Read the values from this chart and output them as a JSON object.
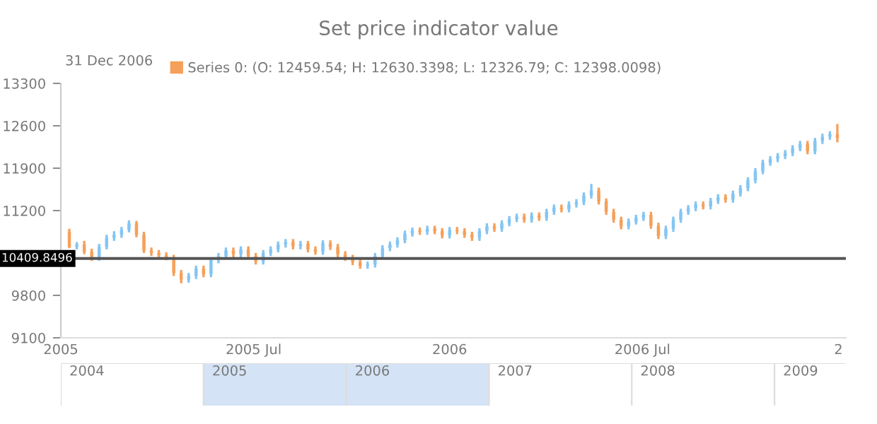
{
  "chart_data": [
    {
      "type": "candlestick",
      "title": "Set price indicator value",
      "annotations": [
        "31 Dec 2006",
        "2004",
        "2005",
        "2006",
        "2007",
        "2008",
        "2009"
      ],
      "x": [
        "2005-01-09",
        "2005-01-16",
        "2005-01-23",
        "2005-01-30",
        "2005-02-06",
        "2005-02-13",
        "2005-02-20",
        "2005-02-27",
        "2005-03-06",
        "2005-03-13",
        "2005-03-20",
        "2005-03-27",
        "2005-04-03",
        "2005-04-10",
        "2005-04-17",
        "2005-04-24",
        "2005-05-01",
        "2005-05-08",
        "2005-05-15",
        "2005-05-22",
        "2005-05-29",
        "2005-06-05",
        "2005-06-12",
        "2005-06-19",
        "2005-06-26",
        "2005-07-03",
        "2005-07-10",
        "2005-07-17",
        "2005-07-24",
        "2005-07-31",
        "2005-08-07",
        "2005-08-14",
        "2005-08-21",
        "2005-08-28",
        "2005-09-04",
        "2005-09-11",
        "2005-09-18",
        "2005-09-25",
        "2005-10-02",
        "2005-10-09",
        "2005-10-16",
        "2005-10-23",
        "2005-10-30",
        "2005-11-06",
        "2005-11-13",
        "2005-11-20",
        "2005-11-27",
        "2005-12-04",
        "2005-12-11",
        "2005-12-18",
        "2005-12-25",
        "2006-01-01",
        "2006-01-08",
        "2006-01-15",
        "2006-01-22",
        "2006-01-29",
        "2006-02-05",
        "2006-02-12",
        "2006-02-19",
        "2006-02-26",
        "2006-03-05",
        "2006-03-12",
        "2006-03-19",
        "2006-03-26",
        "2006-04-02",
        "2006-04-09",
        "2006-04-16",
        "2006-04-23",
        "2006-04-30",
        "2006-05-07",
        "2006-05-14",
        "2006-05-21",
        "2006-05-28",
        "2006-06-04",
        "2006-06-11",
        "2006-06-18",
        "2006-06-25",
        "2006-07-02",
        "2006-07-09",
        "2006-07-16",
        "2006-07-23",
        "2006-07-30",
        "2006-08-06",
        "2006-08-13",
        "2006-08-20",
        "2006-08-27",
        "2006-09-03",
        "2006-09-10",
        "2006-09-17",
        "2006-09-24",
        "2006-10-01",
        "2006-10-08",
        "2006-10-15",
        "2006-10-22",
        "2006-10-29",
        "2006-11-05",
        "2006-11-12",
        "2006-11-19",
        "2006-11-26",
        "2006-12-03",
        "2006-12-10",
        "2006-12-17",
        "2006-12-24",
        "2006-12-31"
      ],
      "series": [
        {
          "name": "Series 0: (O: 12459.54; H: 12630.3398; L: 12326.79; C: 12398.0098)",
          "color": "#f5a05a",
          "colors": [
            "#f5a05a",
            "#84c5f2",
            "#f5a05a",
            "#f5a05a",
            "#84c5f2",
            "#84c5f2",
            "#84c5f2",
            "#84c5f2",
            "#84c5f2",
            "#f5a05a",
            "#f5a05a",
            "#f5a05a",
            "#f5a05a",
            "#f5a05a",
            "#f5a05a",
            "#f5a05a",
            "#84c5f2",
            "#84c5f2",
            "#f5a05a",
            "#84c5f2",
            "#84c5f2",
            "#84c5f2",
            "#f5a05a",
            "#84c5f2",
            "#f5a05a",
            "#f5a05a",
            "#84c5f2",
            "#84c5f2",
            "#84c5f2",
            "#84c5f2",
            "#f5a05a",
            "#84c5f2",
            "#f5a05a",
            "#f5a05a",
            "#84c5f2",
            "#f5a05a",
            "#f5a05a",
            "#f5a05a",
            "#f5a05a",
            "#f5a05a",
            "#84c5f2",
            "#84c5f2",
            "#84c5f2",
            "#84c5f2",
            "#84c5f2",
            "#84c5f2",
            "#84c5f2",
            "#f5a05a",
            "#84c5f2",
            "#f5a05a",
            "#f5a05a",
            "#84c5f2",
            "#f5a05a",
            "#f5a05a",
            "#f5a05a",
            "#84c5f2",
            "#84c5f2",
            "#f5a05a",
            "#84c5f2",
            "#84c5f2",
            "#84c5f2",
            "#f5a05a",
            "#84c5f2",
            "#f5a05a",
            "#84c5f2",
            "#84c5f2",
            "#f5a05a",
            "#84c5f2",
            "#84c5f2",
            "#84c5f2",
            "#84c5f2",
            "#f5a05a",
            "#f5a05a",
            "#f5a05a",
            "#f5a05a",
            "#84c5f2",
            "#84c5f2",
            "#84c5f2",
            "#f5a05a",
            "#f5a05a",
            "#84c5f2",
            "#84c5f2",
            "#84c5f2",
            "#84c5f2",
            "#84c5f2",
            "#f5a05a",
            "#84c5f2",
            "#84c5f2",
            "#f5a05a",
            "#84c5f2",
            "#84c5f2",
            "#84c5f2",
            "#84c5f2",
            "#84c5f2",
            "#84c5f2",
            "#84c5f2",
            "#84c5f2",
            "#84c5f2",
            "#84c5f2",
            "#f5a05a",
            "#84c5f2",
            "#84c5f2",
            "#84c5f2",
            "#f5a05a"
          ],
          "ohlc": [
            [
              10850,
              10900,
              10580,
              10600
            ],
            [
              10600,
              10680,
              10560,
              10640
            ],
            [
              10640,
              10700,
              10480,
              10520
            ],
            [
              10520,
              10570,
              10370,
              10410
            ],
            [
              10410,
              10650,
              10370,
              10600
            ],
            [
              10600,
              10800,
              10560,
              10750
            ],
            [
              10750,
              10860,
              10700,
              10800
            ],
            [
              10800,
              10930,
              10750,
              10880
            ],
            [
              10880,
              11040,
              10840,
              10990
            ],
            [
              10990,
              11030,
              10760,
              10800
            ],
            [
              10800,
              10850,
              10500,
              10540
            ],
            [
              10540,
              10590,
              10450,
              10500
            ],
            [
              10500,
              10550,
              10410,
              10460
            ],
            [
              10460,
              10510,
              10380,
              10430
            ],
            [
              10430,
              10470,
              10120,
              10170
            ],
            [
              10170,
              10220,
              10000,
              10060
            ],
            [
              10060,
              10170,
              10010,
              10120
            ],
            [
              10120,
              10290,
              10070,
              10240
            ],
            [
              10240,
              10290,
              10100,
              10150
            ],
            [
              10150,
              10430,
              10100,
              10380
            ],
            [
              10380,
              10500,
              10330,
              10450
            ],
            [
              10450,
              10590,
              10400,
              10540
            ],
            [
              10540,
              10590,
              10430,
              10480
            ],
            [
              10480,
              10610,
              10430,
              10560
            ],
            [
              10560,
              10610,
              10400,
              10450
            ],
            [
              10450,
              10500,
              10310,
              10360
            ],
            [
              10360,
              10550,
              10310,
              10500
            ],
            [
              10500,
              10610,
              10450,
              10560
            ],
            [
              10560,
              10690,
              10510,
              10640
            ],
            [
              10640,
              10730,
              10590,
              10680
            ],
            [
              10680,
              10730,
              10560,
              10610
            ],
            [
              10610,
              10700,
              10560,
              10650
            ],
            [
              10650,
              10700,
              10510,
              10560
            ],
            [
              10560,
              10610,
              10470,
              10520
            ],
            [
              10520,
              10710,
              10470,
              10660
            ],
            [
              10660,
              10710,
              10550,
              10600
            ],
            [
              10600,
              10650,
              10430,
              10480
            ],
            [
              10480,
              10530,
              10370,
              10420
            ],
            [
              10420,
              10470,
              10300,
              10350
            ],
            [
              10350,
              10400,
              10240,
              10290
            ],
            [
              10290,
              10360,
              10240,
              10310
            ],
            [
              10310,
              10500,
              10260,
              10450
            ],
            [
              10450,
              10630,
              10400,
              10580
            ],
            [
              10580,
              10690,
              10530,
              10640
            ],
            [
              10640,
              10760,
              10590,
              10710
            ],
            [
              10710,
              10870,
              10660,
              10820
            ],
            [
              10820,
              10920,
              10770,
              10870
            ],
            [
              10870,
              10920,
              10800,
              10850
            ],
            [
              10850,
              10950,
              10800,
              10900
            ],
            [
              10900,
              10950,
              10810,
              10860
            ],
            [
              10860,
              10910,
              10740,
              10790
            ],
            [
              10790,
              10930,
              10740,
              10880
            ],
            [
              10880,
              10930,
              10810,
              10860
            ],
            [
              10860,
              10910,
              10750,
              10800
            ],
            [
              10800,
              10850,
              10700,
              10750
            ],
            [
              10750,
              10910,
              10700,
              10860
            ],
            [
              10860,
              10990,
              10810,
              10940
            ],
            [
              10940,
              10990,
              10850,
              10900
            ],
            [
              10900,
              11040,
              10850,
              10990
            ],
            [
              10990,
              11110,
              10940,
              11060
            ],
            [
              11060,
              11150,
              11010,
              11100
            ],
            [
              11100,
              11150,
              11000,
              11050
            ],
            [
              11050,
              11170,
              11000,
              11120
            ],
            [
              11120,
              11170,
              11030,
              11080
            ],
            [
              11080,
              11230,
              11030,
              11180
            ],
            [
              11180,
              11300,
              11130,
              11250
            ],
            [
              11250,
              11300,
              11170,
              11220
            ],
            [
              11220,
              11350,
              11170,
              11300
            ],
            [
              11300,
              11390,
              11250,
              11340
            ],
            [
              11340,
              11500,
              11290,
              11450
            ],
            [
              11450,
              11640,
              11400,
              11530
            ],
            [
              11530,
              11580,
              11300,
              11350
            ],
            [
              11350,
              11400,
              11130,
              11180
            ],
            [
              11180,
              11230,
              11000,
              11050
            ],
            [
              11050,
              11100,
              10890,
              10940
            ],
            [
              10940,
              11070,
              10890,
              11020
            ],
            [
              11020,
              11130,
              10970,
              11080
            ],
            [
              11080,
              11180,
              11030,
              11130
            ],
            [
              11130,
              11180,
              10900,
              10950
            ],
            [
              10950,
              11000,
              10730,
              10780
            ],
            [
              10780,
              10950,
              10730,
              10900
            ],
            [
              10900,
              11100,
              10850,
              11050
            ],
            [
              11050,
              11230,
              11000,
              11180
            ],
            [
              11180,
              11290,
              11130,
              11240
            ],
            [
              11240,
              11350,
              11190,
              11300
            ],
            [
              11300,
              11350,
              11220,
              11270
            ],
            [
              11270,
              11410,
              11220,
              11360
            ],
            [
              11360,
              11470,
              11310,
              11420
            ],
            [
              11420,
              11470,
              11330,
              11380
            ],
            [
              11380,
              11530,
              11330,
              11480
            ],
            [
              11480,
              11620,
              11430,
              11570
            ],
            [
              11570,
              11750,
              11520,
              11700
            ],
            [
              11700,
              11900,
              11650,
              11850
            ],
            [
              11850,
              12040,
              11800,
              11990
            ],
            [
              11990,
              12100,
              11940,
              12050
            ],
            [
              12050,
              12150,
              12000,
              12100
            ],
            [
              12100,
              12200,
              12050,
              12150
            ],
            [
              12150,
              12280,
              12100,
              12230
            ],
            [
              12230,
              12350,
              12180,
              12300
            ],
            [
              12300,
              12350,
              12130,
              12180
            ],
            [
              12180,
              12400,
              12130,
              12350
            ],
            [
              12350,
              12470,
              12300,
              12420
            ],
            [
              12420,
              12510,
              12370,
              12459.54
            ],
            [
              12459.54,
              12630.3398,
              12326.79,
              12398.0098
            ]
          ]
        }
      ],
      "xlim": [
        "2005-01-01",
        "2007-01-08"
      ],
      "xticks": [
        {
          "value": "2005-01-01",
          "label": "2005"
        },
        {
          "value": "2005-07-01",
          "label": "2005 Jul"
        },
        {
          "value": "2006-01-01",
          "label": "2006"
        },
        {
          "value": "2006-07-01",
          "label": "2006 Jul"
        },
        {
          "value": "2007-01-01",
          "label": "2"
        }
      ],
      "ylim": [
        9100,
        13300
      ],
      "yticks": [
        9100,
        9800,
        {
          "value": 10500,
          "label": null
        },
        11200,
        11900,
        12600,
        13300
      ],
      "ref_lines": [
        {
          "axis": "y",
          "value": 10409.8496,
          "label": "10409.8496",
          "color": "#555555"
        }
      ],
      "legend": "top left",
      "grid": false
    }
  ]
}
